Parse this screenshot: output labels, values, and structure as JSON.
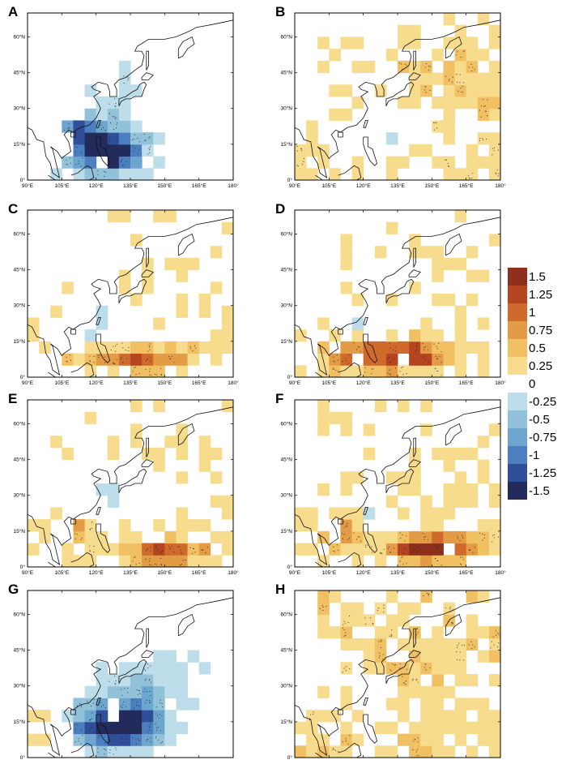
{
  "figure": {
    "panels": [
      {
        "label": "A",
        "pattern": "neg_strong"
      },
      {
        "label": "B",
        "pattern": "weak_mixed"
      },
      {
        "label": "C",
        "pattern": "mixed_pos_south"
      },
      {
        "label": "D",
        "pattern": "pos_south"
      },
      {
        "label": "E",
        "pattern": "mixed_pos_south_east"
      },
      {
        "label": "F",
        "pattern": "pos_strong_band"
      },
      {
        "label": "G",
        "pattern": "neg_mid"
      },
      {
        "label": "H",
        "pattern": "weak_pos"
      }
    ],
    "lon_ticks": [
      "90°E",
      "105°E",
      "120°E",
      "135°E",
      "150°E",
      "165°E",
      "180°"
    ],
    "lat_ticks": [
      "0°",
      "15°N",
      "30°N",
      "45°N",
      "60°N"
    ],
    "lon_range": [
      90,
      180
    ],
    "lat_range": [
      0,
      70
    ],
    "legend": {
      "levels": [
        {
          "label": "1.5",
          "color": "#8e2f1b"
        },
        {
          "label": "1.25",
          "color": "#b5451f"
        },
        {
          "label": "1",
          "color": "#cf6a2c"
        },
        {
          "label": "0.75",
          "color": "#e39b45"
        },
        {
          "label": "0.5",
          "color": "#f0c062"
        },
        {
          "label": "0.25",
          "color": "#f7dc8e"
        },
        {
          "label": "0",
          "color": "#ffffff"
        },
        {
          "label": "-0.25",
          "color": "#bcdde9"
        },
        {
          "label": "-0.5",
          "color": "#92c2d9"
        },
        {
          "label": "-0.75",
          "color": "#6ca6cf"
        },
        {
          "label": "-1",
          "color": "#4b7fbf"
        },
        {
          "label": "-1.25",
          "color": "#304f99"
        },
        {
          "label": "-1.5",
          "color": "#232b5c"
        }
      ]
    }
  }
}
